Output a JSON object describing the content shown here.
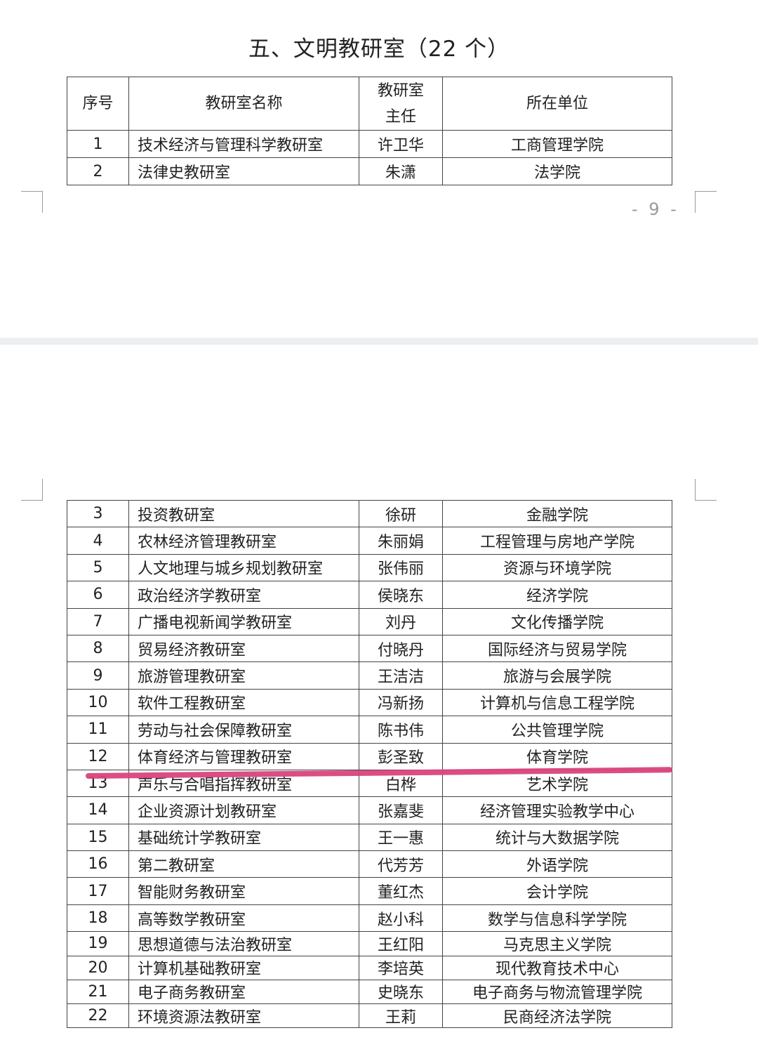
{
  "title": "五、文明教研室（22 个）",
  "page_number": "- 9 -",
  "headers": [
    "序号",
    "教研室名称",
    "教研室主任",
    "所在单位"
  ],
  "header_director_lines": [
    "教研室",
    "主任"
  ],
  "rows_page1": [
    {
      "no": "1",
      "name": "技术经济与管理科学教研室",
      "director": "许卫华",
      "unit": "工商管理学院"
    },
    {
      "no": "2",
      "name": "法律史教研室",
      "director": "朱潇",
      "unit": "法学院"
    }
  ],
  "rows_page2": [
    {
      "no": "3",
      "name": "投资教研室",
      "director": "徐研",
      "unit": "金融学院"
    },
    {
      "no": "4",
      "name": "农林经济管理教研室",
      "director": "朱丽娟",
      "unit": "工程管理与房地产学院"
    },
    {
      "no": "5",
      "name": "人文地理与城乡规划教研室",
      "director": "张伟丽",
      "unit": "资源与环境学院"
    },
    {
      "no": "6",
      "name": "政治经济学教研室",
      "director": "侯晓东",
      "unit": "经济学院"
    },
    {
      "no": "7",
      "name": "广播电视新闻学教研室",
      "director": "刘丹",
      "unit": "文化传播学院"
    },
    {
      "no": "8",
      "name": "贸易经济教研室",
      "director": "付晓丹",
      "unit": "国际经济与贸易学院"
    },
    {
      "no": "9",
      "name": "旅游管理教研室",
      "director": "王洁洁",
      "unit": "旅游与会展学院"
    },
    {
      "no": "10",
      "name": "软件工程教研室",
      "director": "冯新扬",
      "unit": "计算机与信息工程学院"
    },
    {
      "no": "11",
      "name": "劳动与社会保障教研室",
      "director": "陈书伟",
      "unit": "公共管理学院"
    },
    {
      "no": "12",
      "name": "体育经济与管理教研室",
      "director": "彭圣致",
      "unit": "体育学院"
    },
    {
      "no": "13",
      "name": "声乐与合唱指挥教研室",
      "director": "白桦",
      "unit": "艺术学院"
    },
    {
      "no": "14",
      "name": "企业资源计划教研室",
      "director": "张嘉斐",
      "unit": "经济管理实验教学中心"
    },
    {
      "no": "15",
      "name": "基础统计学教研室",
      "director": "王一惠",
      "unit": "统计与大数据学院"
    },
    {
      "no": "16",
      "name": "第二教研室",
      "director": "代芳芳",
      "unit": "外语学院"
    },
    {
      "no": "17",
      "name": "智能财务教研室",
      "director": "董红杰",
      "unit": "会计学院"
    },
    {
      "no": "18",
      "name": "高等数学教研室",
      "director": "赵小科",
      "unit": "数学与信息科学学院"
    },
    {
      "no": "19",
      "name": "思想道德与法治教研室",
      "director": "王红阳",
      "unit": "马克思主义学院"
    },
    {
      "no": "20",
      "name": "计算机基础教研室",
      "director": "李培英",
      "unit": "现代教育技术中心"
    },
    {
      "no": "21",
      "name": "电子商务教研室",
      "director": "史晓东",
      "unit": "电子商务与物流管理学院"
    },
    {
      "no": "22",
      "name": "环境资源法教研室",
      "director": "王莉",
      "unit": "民商经济法学院"
    }
  ],
  "colors": {
    "highlight_mark": "#d9437c",
    "separator": "#eceef0"
  }
}
